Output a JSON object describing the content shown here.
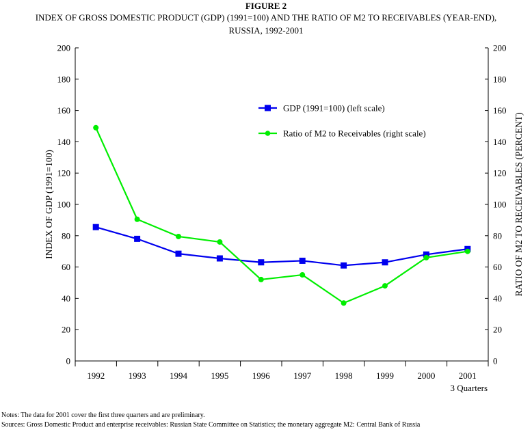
{
  "figure_label": "FIGURE 2",
  "title_line1": "INDEX OF GROSS DOMESTIC PRODUCT (GDP) (1991=100) AND THE RATIO OF M2 TO RECEIVABLES (YEAR-END),",
  "title_line2": "RUSSIA, 1992-2001",
  "notes": "Notes:     The data for 2001 cover the first three quarters and are preliminary.",
  "sources": "Sources: Gross Domestic Product and enterprise receivables: Russian State Committee on Statistics; the monetary aggregate M2: Central Bank of Russia",
  "chart_data": {
    "type": "line",
    "categories": [
      "1992",
      "1993",
      "1994",
      "1995",
      "1996",
      "1997",
      "1998",
      "1999",
      "2000",
      "2001"
    ],
    "x_sublabel": "3 Quarters",
    "ylabel_left": "INDEX OF GDP (1991=100)",
    "ylabel_right": "RATIO OF M2 TO RECEIVABLES (PERCENT)",
    "ylim": [
      0,
      200
    ],
    "yticks": [
      0,
      20,
      40,
      60,
      80,
      100,
      120,
      140,
      160,
      180,
      200
    ],
    "grid": false,
    "legend_position": "top-right",
    "series": [
      {
        "name": "GDP (1991=100) (left scale)",
        "axis": "left",
        "marker": "square",
        "color": "#0000ee",
        "values": [
          85.5,
          78,
          68.5,
          65.5,
          63,
          64,
          61,
          63,
          68,
          71.5
        ]
      },
      {
        "name": "Ratio of M2 to Receivables (right scale)",
        "axis": "right",
        "marker": "circle",
        "color": "#00ee00",
        "values": [
          149,
          90.5,
          79.5,
          76,
          52,
          55,
          37,
          48,
          66,
          70
        ]
      }
    ]
  }
}
